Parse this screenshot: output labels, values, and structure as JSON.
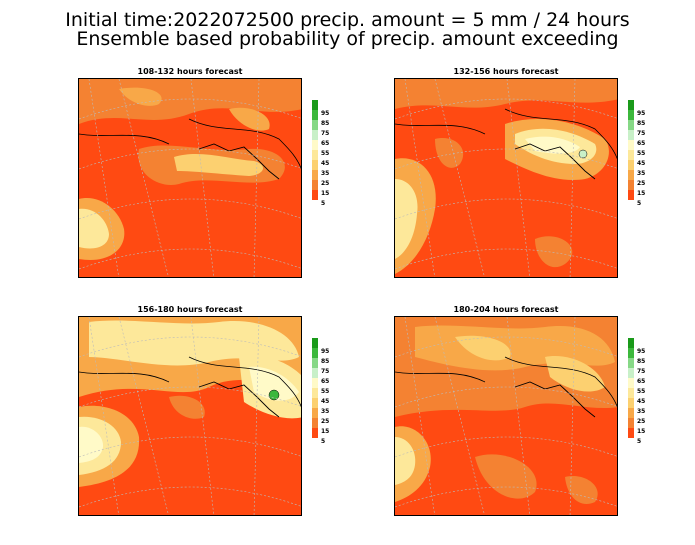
{
  "title_line1": "Initial time:2022072500 precip. amount =  5 mm / 24 hours",
  "title_line2": "Ensemble based probability of precip. amount exceeding",
  "panels": [
    {
      "label": "108-132 hours forecast"
    },
    {
      "label": "132-156 hours forecast"
    },
    {
      "label": "156-180 hours forecast"
    },
    {
      "label": "180-204 hours forecast"
    }
  ],
  "colorbar": {
    "labels": [
      "95",
      "85",
      "75",
      "65",
      "55",
      "45",
      "35",
      "25",
      "15",
      "5"
    ],
    "colors": [
      "#1a9a1a",
      "#3cb83c",
      "#86d886",
      "#c8f0c8",
      "#fffac8",
      "#fde89a",
      "#fcd070",
      "#f8a848",
      "#f48232",
      "#ff4a12"
    ]
  },
  "colors": {
    "low": "#ff4a12",
    "mid": "#f48232",
    "mid2": "#f8a848",
    "high": "#fcd070",
    "higher": "#fde89a",
    "peak": "#fffac8"
  }
}
